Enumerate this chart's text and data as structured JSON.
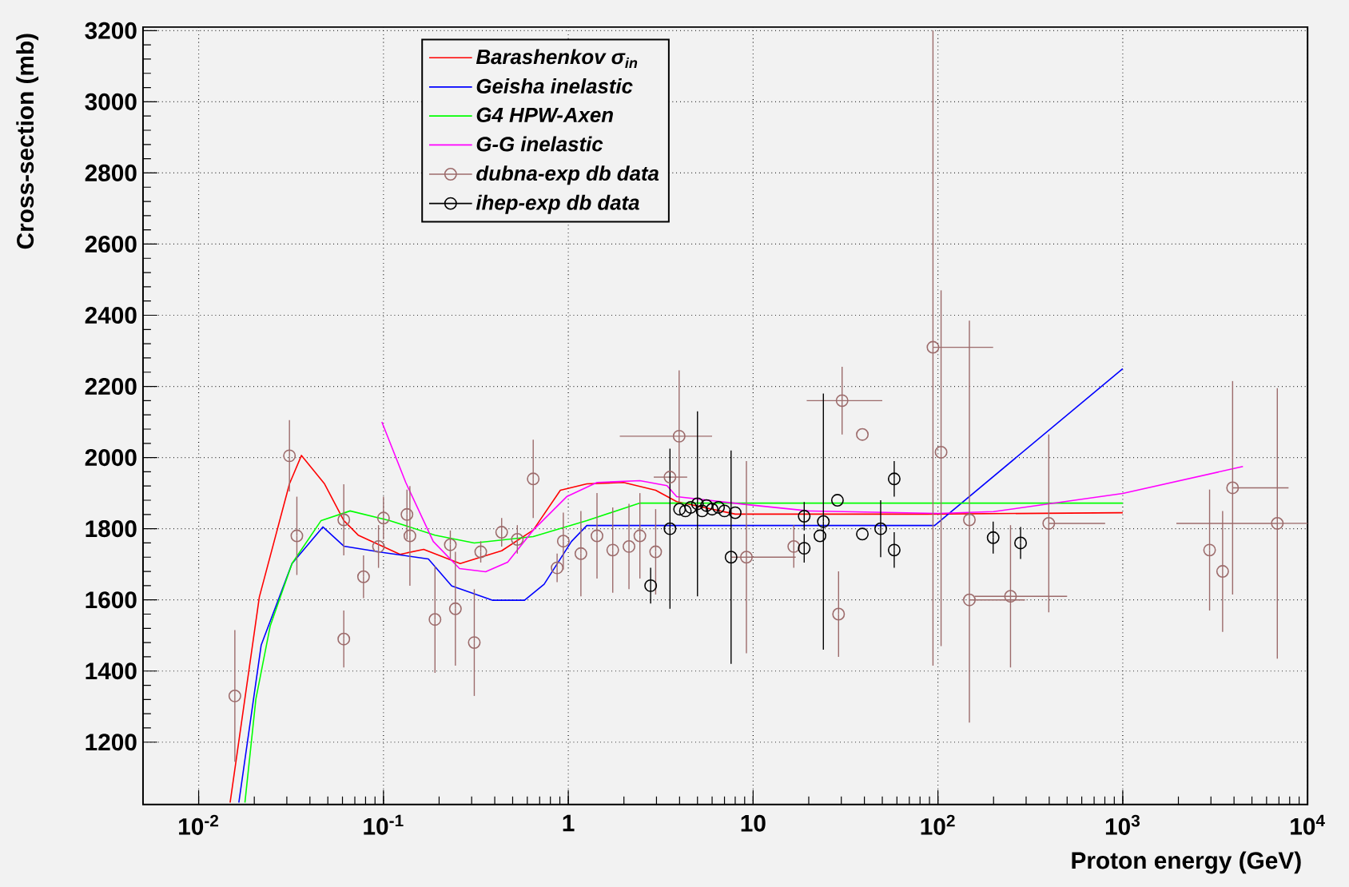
{
  "chart_data": {
    "type": "line",
    "xlabel": "Proton energy (GeV)",
    "ylabel": "Cross-section (mb)",
    "log": "x",
    "grid": true,
    "legend": "top left",
    "xlim": [
      0.005,
      10000
    ],
    "ylim": [
      1025,
      3210
    ],
    "xticks": [
      {
        "value": 0.01,
        "label": "10$^{-2}$"
      },
      {
        "value": 0.1,
        "label": "10$^{-1}$"
      },
      1,
      10,
      {
        "value": 100,
        "label": "10$^{2}$"
      },
      {
        "value": 1000,
        "label": "10$^{3}$"
      },
      {
        "value": 10000,
        "label": "10$^{4}$"
      }
    ],
    "yticks": [
      1200,
      1400,
      1600,
      1800,
      2000,
      2200,
      2400,
      2600,
      2800,
      3000,
      3200
    ],
    "series": [
      {
        "name": "Barashenkov σ$_{in}$",
        "color": "#ff0000",
        "x": [
          0.0148,
          0.0213,
          0.031,
          0.036,
          0.048,
          0.061,
          0.073,
          0.123,
          0.165,
          0.26,
          0.336,
          0.436,
          0.646,
          0.906,
          1.26,
          1.99,
          2.97,
          3.86,
          8.0,
          87,
          1000
        ],
        "values": [
          1030,
          1608,
          1926,
          2006,
          1926,
          1823,
          1782,
          1728,
          1742,
          1702,
          1720,
          1738,
          1796,
          1908,
          1926,
          1930,
          1908,
          1876,
          1841,
          1841,
          1845
        ]
      },
      {
        "name": "Geisha inelastic",
        "color": "#0000ff",
        "x": [
          0.0165,
          0.0218,
          0.032,
          0.047,
          0.061,
          0.1,
          0.175,
          0.234,
          0.294,
          0.39,
          0.58,
          0.74,
          1.04,
          1.26,
          96,
          1000
        ],
        "values": [
          1030,
          1473,
          1702,
          1805,
          1751,
          1733,
          1715,
          1639,
          1621,
          1599,
          1599,
          1644,
          1764,
          1809,
          1809,
          2250
        ]
      },
      {
        "name": "G4 HPW-Axen",
        "color": "#00ff00",
        "x": [
          0.0178,
          0.0204,
          0.0244,
          0.032,
          0.046,
          0.066,
          0.108,
          0.19,
          0.31,
          0.646,
          1.26,
          2.44,
          1000
        ],
        "values": [
          1030,
          1321,
          1527,
          1702,
          1823,
          1850,
          1823,
          1782,
          1760,
          1778,
          1823,
          1872,
          1872
        ]
      },
      {
        "name": "G-G inelastic",
        "color": "#ff00ff",
        "x": [
          0.098,
          0.132,
          0.186,
          0.258,
          0.357,
          0.47,
          0.646,
          0.98,
          1.43,
          2.44,
          3.42,
          3.86,
          9.2,
          20,
          100,
          200,
          1000,
          4470
        ],
        "values": [
          2100,
          1930,
          1764,
          1688,
          1679,
          1706,
          1796,
          1890,
          1930,
          1935,
          1921,
          1890,
          1868,
          1850,
          1843,
          1848,
          1899,
          1975
        ]
      },
      {
        "name": "dubna-exp db data",
        "color": "#9c6b6b",
        "type": "scatter",
        "marker": "circle",
        "x": [
          0.0157,
          0.031,
          0.034,
          0.061,
          0.061,
          0.078,
          0.094,
          0.1,
          0.134,
          0.139,
          0.19,
          0.23,
          0.245,
          0.31,
          0.336,
          0.436,
          0.53,
          0.646,
          0.87,
          0.94,
          1.17,
          1.43,
          1.74,
          2.13,
          2.44,
          2.97,
          3.55,
          3.98,
          9.2,
          16.6,
          29,
          30.3,
          39,
          94,
          104,
          148,
          148,
          247,
          398,
          2950,
          3470,
          3930,
          6860
        ],
        "values": [
          1330,
          2005,
          1780,
          1490,
          1825,
          1665,
          1750,
          1830,
          1840,
          1780,
          1545,
          1755,
          1575,
          1480,
          1735,
          1790,
          1770,
          1940,
          1690,
          1765,
          1730,
          1780,
          1740,
          1750,
          1780,
          1735,
          1945,
          2060,
          1720,
          1750,
          1560,
          2160,
          2065,
          2310,
          2015,
          1825,
          1600,
          1610,
          1815,
          1740,
          1680,
          1915,
          1815
        ],
        "errors": [
          185,
          100,
          110,
          80,
          100,
          60,
          60,
          60,
          70,
          140,
          150,
          40,
          160,
          150,
          30,
          40,
          40,
          110,
          40,
          80,
          120,
          120,
          120,
          120,
          120,
          120,
          null,
          185,
          270,
          60,
          120,
          95,
          null,
          [
            1415,
            3200
          ],
          [
            1470,
            2470
          ],
          [
            1255,
            2385
          ],
          null,
          200,
          250,
          170,
          170,
          300,
          380
        ],
        "xerrors": [
          null,
          null,
          null,
          null,
          null,
          null,
          null,
          null,
          null,
          null,
          null,
          null,
          null,
          null,
          null,
          null,
          null,
          null,
          null,
          null,
          null,
          null,
          null,
          null,
          null,
          null,
          [
            2.9,
            4.4
          ],
          [
            1.9,
            6.0
          ],
          [
            7.6,
            17
          ],
          null,
          null,
          [
            19.5,
            50
          ],
          null,
          [
            94,
            199
          ],
          null,
          null,
          [
            148,
            296
          ],
          [
            158,
            500
          ],
          [
            398,
            803
          ],
          null,
          null,
          [
            3930,
            7890
          ],
          [
            1950,
            10000
          ]
        ]
      },
      {
        "name": "ihep-exp db data",
        "color": "#000000",
        "type": "scatter",
        "marker": "circle",
        "x": [
          2.79,
          3.55,
          4.0,
          4.3,
          4.6,
          5.0,
          5.3,
          5.6,
          6.0,
          6.5,
          7.0,
          7.6,
          8.0,
          18.9,
          18.9,
          23,
          24,
          28.6,
          39,
          49,
          58,
          58,
          199,
          280
        ],
        "values": [
          1640,
          1800,
          1855,
          1850,
          1860,
          1870,
          1850,
          1865,
          1855,
          1860,
          1850,
          1720,
          1845,
          1835,
          1745,
          1780,
          1820,
          1880,
          1785,
          1800,
          1940,
          1740,
          1775,
          1760
        ],
        "errors": [
          50,
          225,
          null,
          null,
          null,
          260,
          null,
          null,
          null,
          null,
          null,
          300,
          null,
          40,
          40,
          null,
          360,
          null,
          null,
          80,
          50,
          50,
          45,
          45
        ]
      }
    ]
  }
}
